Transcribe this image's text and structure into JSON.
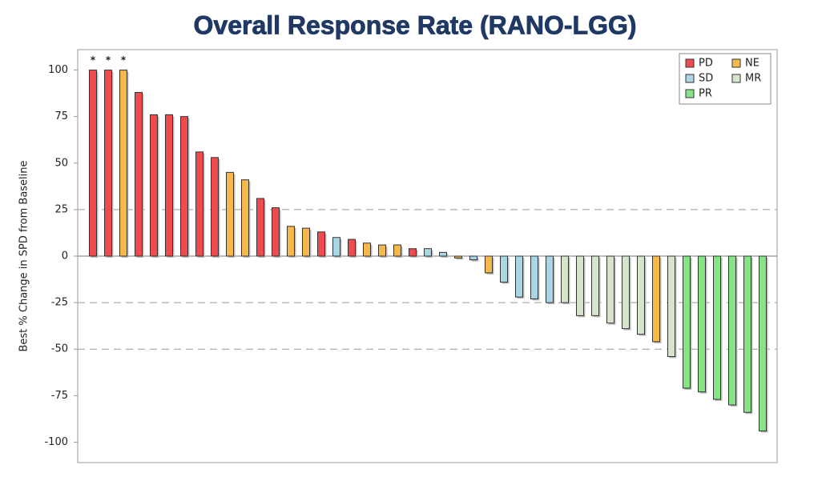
{
  "chart_data": {
    "type": "bar",
    "title": "Overall Response Rate (RANO-LGG)",
    "y_label": "Best % Change in SPD from Baseline",
    "ylim": [
      -111,
      111
    ],
    "yticks": [
      100,
      75,
      50,
      25,
      0,
      -25,
      -50,
      -75,
      -100
    ],
    "reference_lines": [
      25,
      -25,
      -50
    ],
    "legend_position": "upper right",
    "annotations": [
      "*",
      "*",
      "*",
      null,
      null,
      null,
      null,
      null,
      null,
      null,
      null,
      null,
      null,
      null,
      null,
      null,
      null,
      null,
      null,
      null,
      null,
      null,
      null,
      null,
      null,
      null,
      null,
      null,
      null,
      null,
      null,
      null,
      null,
      null,
      null,
      null,
      null,
      null,
      null,
      null,
      null,
      null,
      null,
      null,
      null
    ],
    "series": [
      {
        "name": "PD",
        "color": "#ee4b4f",
        "values": [
          100,
          100,
          null,
          88,
          76,
          76,
          75,
          56,
          53,
          null,
          null,
          31,
          26,
          null,
          null,
          13,
          null,
          9,
          null,
          null,
          null,
          4,
          null,
          null,
          null,
          null,
          null,
          null,
          null,
          null,
          null,
          null,
          null,
          null,
          null,
          null,
          null,
          null,
          null,
          null,
          null,
          null,
          null,
          null,
          null
        ]
      },
      {
        "name": "NE",
        "color": "#f4b84c",
        "values": [
          null,
          null,
          100,
          null,
          null,
          null,
          null,
          null,
          null,
          45,
          41,
          null,
          null,
          16,
          15,
          null,
          null,
          null,
          7,
          6,
          6,
          null,
          null,
          null,
          -1,
          null,
          -9,
          null,
          null,
          null,
          null,
          null,
          null,
          null,
          null,
          null,
          null,
          -46,
          null,
          null,
          null,
          null,
          null,
          null,
          null
        ]
      },
      {
        "name": "SD",
        "color": "#a9d5e4",
        "values": [
          null,
          null,
          null,
          null,
          null,
          null,
          null,
          null,
          null,
          null,
          null,
          null,
          null,
          null,
          null,
          null,
          10,
          null,
          null,
          null,
          null,
          null,
          4,
          2,
          null,
          -2,
          null,
          -14,
          -22,
          -23,
          -25,
          null,
          null,
          null,
          null,
          null,
          null,
          null,
          null,
          null,
          null,
          null,
          null,
          null,
          null
        ]
      },
      {
        "name": "MR",
        "color": "#d6e4cb",
        "values": [
          null,
          null,
          null,
          null,
          null,
          null,
          null,
          null,
          null,
          null,
          null,
          null,
          null,
          null,
          null,
          null,
          null,
          null,
          null,
          null,
          null,
          null,
          null,
          null,
          null,
          null,
          null,
          null,
          null,
          null,
          null,
          -25,
          -32,
          -32,
          -36,
          -39,
          -42,
          null,
          -54,
          null,
          null,
          null,
          null,
          null,
          null
        ]
      },
      {
        "name": "PR",
        "color": "#86e486",
        "values": [
          null,
          null,
          null,
          null,
          null,
          null,
          null,
          null,
          null,
          null,
          null,
          null,
          null,
          null,
          null,
          null,
          null,
          null,
          null,
          null,
          null,
          null,
          null,
          null,
          null,
          null,
          null,
          null,
          null,
          null,
          null,
          null,
          null,
          null,
          null,
          null,
          null,
          null,
          null,
          -71,
          -73,
          -77,
          -80,
          -84,
          -94
        ]
      }
    ]
  }
}
